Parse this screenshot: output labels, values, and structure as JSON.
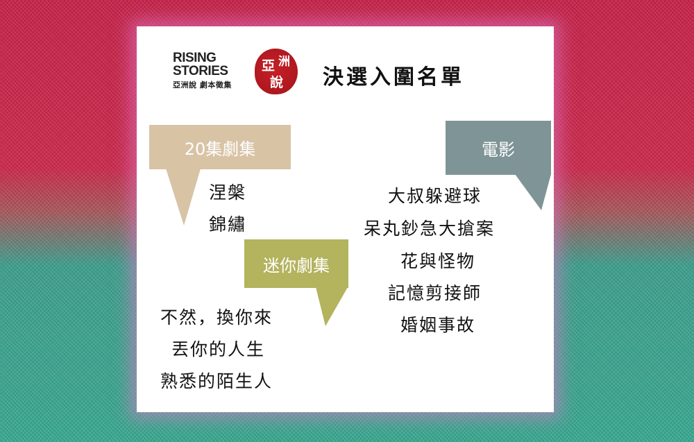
{
  "logo": {
    "line1": "RISING",
    "line2": "STORIES",
    "subtitle": "亞洲說 劇本徵集",
    "seal_chars": [
      "亞",
      "洲",
      "說"
    ]
  },
  "heading": "決選入圍名單",
  "categories": {
    "series20": {
      "label": "20集劇集",
      "color": "#d8c3a5",
      "items": [
        "涅槃",
        "錦繡"
      ]
    },
    "mini": {
      "label": "迷你劇集",
      "color": "#b4b35e",
      "items": [
        "不然，換你來",
        "丟你的人生",
        "熟悉的陌生人"
      ]
    },
    "film": {
      "label": "電影",
      "color": "#7f9496",
      "items": [
        "大叔躲避球",
        "呆丸鈔急大搶案",
        "花與怪物",
        "記憶剪接師",
        "婚姻事故"
      ]
    }
  }
}
